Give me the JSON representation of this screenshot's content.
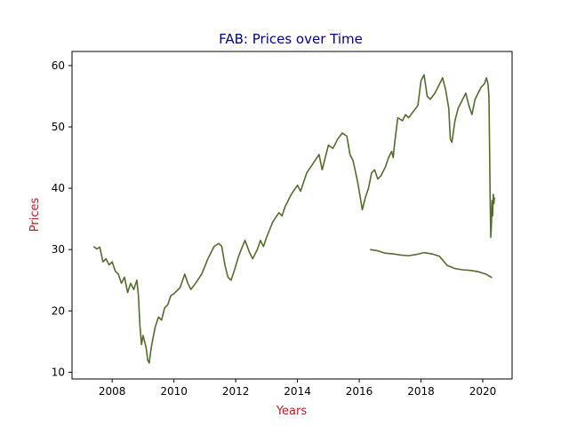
{
  "chart_data": {
    "type": "line",
    "title": "FAB: Prices over Time",
    "xlabel": "Years",
    "ylabel": "Prices",
    "xlim": [
      2006.7,
      2020.95
    ],
    "ylim": [
      8.9,
      62.3
    ],
    "xticks": [
      2008,
      2010,
      2012,
      2014,
      2016,
      2018,
      2020
    ],
    "yticks": [
      10,
      20,
      30,
      40,
      50,
      60
    ],
    "grid": false,
    "legend": false,
    "colors": {
      "line": "#556b2f",
      "title": "#00008b",
      "axis_label": "#b22222",
      "axes": "#000000"
    },
    "series": [
      {
        "values": [
          [
            2007.4,
            30.5
          ],
          [
            2007.5,
            30.1
          ],
          [
            2007.6,
            30.4
          ],
          [
            2007.7,
            28.0
          ],
          [
            2007.8,
            28.5
          ],
          [
            2007.9,
            27.5
          ],
          [
            2008.0,
            28.0
          ],
          [
            2008.1,
            26.5
          ],
          [
            2008.2,
            26.0
          ],
          [
            2008.3,
            24.5
          ],
          [
            2008.4,
            25.5
          ],
          [
            2008.5,
            23.0
          ],
          [
            2008.6,
            24.5
          ],
          [
            2008.7,
            23.5
          ],
          [
            2008.8,
            25.0
          ],
          [
            2008.85,
            22.5
          ],
          [
            2008.9,
            17.5
          ],
          [
            2008.95,
            14.5
          ],
          [
            2009.0,
            16.0
          ],
          [
            2009.05,
            15.0
          ],
          [
            2009.1,
            14.0
          ],
          [
            2009.15,
            12.0
          ],
          [
            2009.2,
            11.5
          ],
          [
            2009.25,
            13.5
          ],
          [
            2009.3,
            15.0
          ],
          [
            2009.4,
            17.5
          ],
          [
            2009.5,
            19.0
          ],
          [
            2009.6,
            18.5
          ],
          [
            2009.7,
            20.5
          ],
          [
            2009.8,
            21.0
          ],
          [
            2009.9,
            22.5
          ],
          [
            2010.0,
            22.8
          ],
          [
            2010.2,
            23.8
          ],
          [
            2010.35,
            26.0
          ],
          [
            2010.45,
            24.5
          ],
          [
            2010.55,
            23.5
          ],
          [
            2010.7,
            24.5
          ],
          [
            2010.9,
            26.0
          ],
          [
            2011.1,
            28.5
          ],
          [
            2011.3,
            30.5
          ],
          [
            2011.45,
            31.0
          ],
          [
            2011.55,
            30.5
          ],
          [
            2011.65,
            27.5
          ],
          [
            2011.75,
            25.5
          ],
          [
            2011.85,
            25.0
          ],
          [
            2011.95,
            26.5
          ],
          [
            2012.1,
            29.0
          ],
          [
            2012.3,
            31.5
          ],
          [
            2012.45,
            29.5
          ],
          [
            2012.55,
            28.5
          ],
          [
            2012.7,
            30.0
          ],
          [
            2012.8,
            31.5
          ],
          [
            2012.9,
            30.5
          ],
          [
            2013.0,
            32.0
          ],
          [
            2013.2,
            34.5
          ],
          [
            2013.4,
            36.0
          ],
          [
            2013.5,
            35.5
          ],
          [
            2013.6,
            37.0
          ],
          [
            2013.8,
            39.0
          ],
          [
            2014.0,
            40.5
          ],
          [
            2014.1,
            39.5
          ],
          [
            2014.3,
            42.5
          ],
          [
            2014.5,
            44.0
          ],
          [
            2014.7,
            45.5
          ],
          [
            2014.8,
            43.0
          ],
          [
            2014.9,
            45.0
          ],
          [
            2015.0,
            47.0
          ],
          [
            2015.15,
            46.5
          ],
          [
            2015.3,
            48.0
          ],
          [
            2015.45,
            49.0
          ],
          [
            2015.6,
            48.5
          ],
          [
            2015.7,
            45.5
          ],
          [
            2015.8,
            44.5
          ],
          [
            2015.95,
            41.0
          ],
          [
            2016.05,
            38.0
          ],
          [
            2016.1,
            36.5
          ],
          [
            2016.2,
            38.5
          ],
          [
            2016.3,
            40.0
          ],
          [
            2016.4,
            42.5
          ],
          [
            2016.5,
            43.0
          ],
          [
            2016.6,
            41.5
          ],
          [
            2016.7,
            42.0
          ],
          [
            2016.85,
            43.5
          ],
          [
            2016.95,
            45.0
          ],
          [
            2017.05,
            46.0
          ],
          [
            2017.1,
            45.0
          ],
          [
            2017.15,
            47.5
          ],
          [
            2017.25,
            51.5
          ],
          [
            2017.4,
            51.0
          ],
          [
            2017.5,
            52.0
          ],
          [
            2017.6,
            51.5
          ],
          [
            2017.75,
            52.5
          ],
          [
            2017.9,
            53.5
          ],
          [
            2018.0,
            57.5
          ],
          [
            2018.1,
            58.5
          ],
          [
            2018.2,
            55.0
          ],
          [
            2018.3,
            54.5
          ],
          [
            2018.45,
            55.5
          ],
          [
            2018.6,
            57.0
          ],
          [
            2018.7,
            58.0
          ],
          [
            2018.8,
            56.0
          ],
          [
            2018.9,
            53.0
          ],
          [
            2018.95,
            48.0
          ],
          [
            2019.0,
            47.5
          ],
          [
            2019.1,
            51.0
          ],
          [
            2019.2,
            53.0
          ],
          [
            2019.35,
            54.5
          ],
          [
            2019.45,
            55.5
          ],
          [
            2019.55,
            53.5
          ],
          [
            2019.65,
            52.0
          ],
          [
            2019.75,
            54.5
          ],
          [
            2019.85,
            55.5
          ],
          [
            2019.95,
            56.5
          ],
          [
            2020.05,
            57.0
          ],
          [
            2020.12,
            58.0
          ],
          [
            2020.17,
            57.0
          ],
          [
            2020.2,
            55.0
          ],
          [
            2020.22,
            47.0
          ],
          [
            2020.24,
            38.0
          ],
          [
            2020.26,
            32.0
          ],
          [
            2020.28,
            34.0
          ],
          [
            2020.3,
            38.0
          ],
          [
            2020.32,
            35.5
          ],
          [
            2020.34,
            39.0
          ],
          [
            2020.36,
            37.5
          ],
          [
            2020.38,
            38.5
          ]
        ]
      },
      {
        "values": [
          [
            2016.35,
            30.0
          ],
          [
            2016.6,
            29.8
          ],
          [
            2016.85,
            29.4
          ],
          [
            2017.1,
            29.3
          ],
          [
            2017.35,
            29.1
          ],
          [
            2017.6,
            29.0
          ],
          [
            2017.85,
            29.2
          ],
          [
            2018.1,
            29.5
          ],
          [
            2018.35,
            29.3
          ],
          [
            2018.6,
            28.9
          ],
          [
            2018.85,
            27.4
          ],
          [
            2019.1,
            26.9
          ],
          [
            2019.35,
            26.7
          ],
          [
            2019.6,
            26.6
          ],
          [
            2019.85,
            26.4
          ],
          [
            2020.1,
            26.0
          ],
          [
            2020.3,
            25.4
          ]
        ]
      }
    ]
  }
}
